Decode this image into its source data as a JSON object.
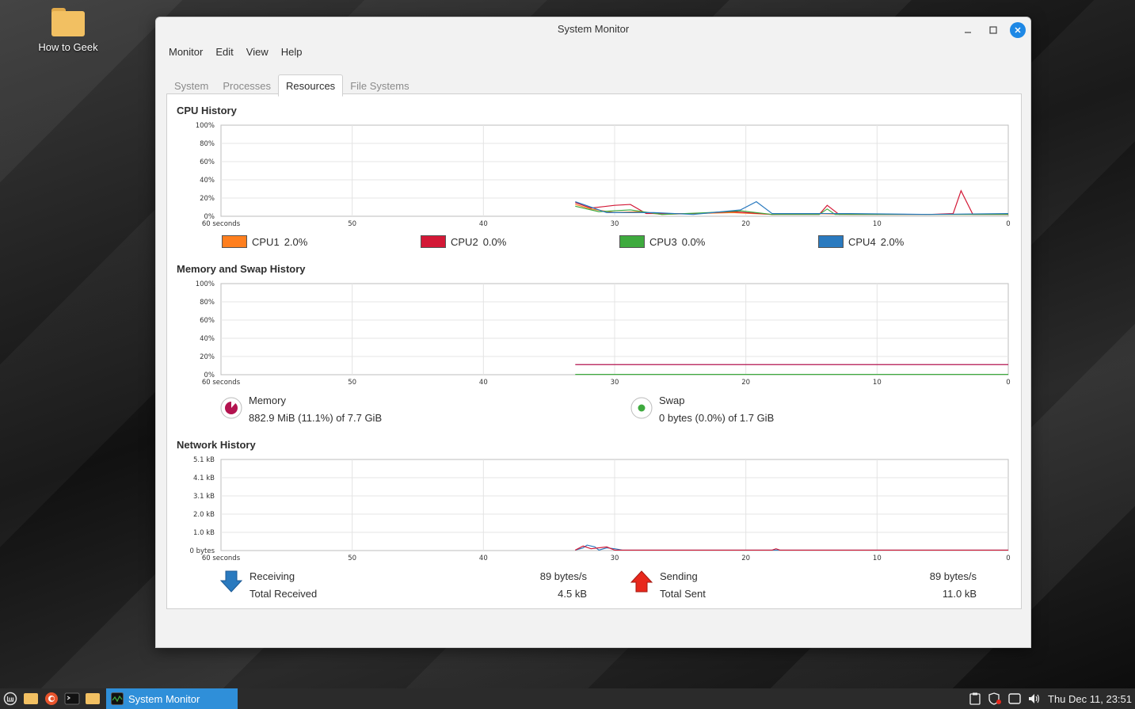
{
  "desktop": {
    "icon_label": "How to Geek"
  },
  "window": {
    "title": "System Monitor",
    "menu": [
      "Monitor",
      "Edit",
      "View",
      "Help"
    ],
    "tabs": [
      "System",
      "Processes",
      "Resources",
      "File Systems"
    ],
    "active_tab": "Resources"
  },
  "x_ticks": [
    "60 seconds",
    "50",
    "40",
    "30",
    "20",
    "10",
    "0"
  ],
  "cpu": {
    "title": "CPU History",
    "y_ticks": [
      "100%",
      "80%",
      "60%",
      "40%",
      "20%",
      "0%"
    ],
    "legend": [
      {
        "name": "CPU1",
        "value": "2.0%",
        "color": "#ff7f1e"
      },
      {
        "name": "CPU2",
        "value": "0.0%",
        "color": "#d31836"
      },
      {
        "name": "CPU3",
        "value": "0.0%",
        "color": "#3eaa3e"
      },
      {
        "name": "CPU4",
        "value": "2.0%",
        "color": "#2a7abf"
      }
    ]
  },
  "memory": {
    "title": "Memory and Swap History",
    "y_ticks": [
      "100%",
      "80%",
      "60%",
      "40%",
      "20%",
      "0%"
    ],
    "memory_label": "Memory",
    "memory_value": "882.9 MiB (11.1%) of 7.7 GiB",
    "memory_percent": 11.1,
    "memory_color": "#b3134f",
    "swap_label": "Swap",
    "swap_value": "0 bytes (0.0%) of 1.7 GiB",
    "swap_color": "#3eaa3e"
  },
  "network": {
    "title": "Network History",
    "y_ticks": [
      "5.1 kB",
      "4.1 kB",
      "3.1 kB",
      "2.0 kB",
      "1.0 kB",
      "0 bytes"
    ],
    "receiving_label": "Receiving",
    "receiving_value": "89 bytes/s",
    "total_received_label": "Total Received",
    "total_received_value": "4.5 kB",
    "sending_label": "Sending",
    "sending_value": "89 bytes/s",
    "total_sent_label": "Total Sent",
    "total_sent_value": "11.0 kB",
    "receive_color": "#2a7abf",
    "send_color": "#d31836"
  },
  "taskbar": {
    "task_label": "System Monitor",
    "clock": "Thu Dec 11, 23:51"
  }
}
